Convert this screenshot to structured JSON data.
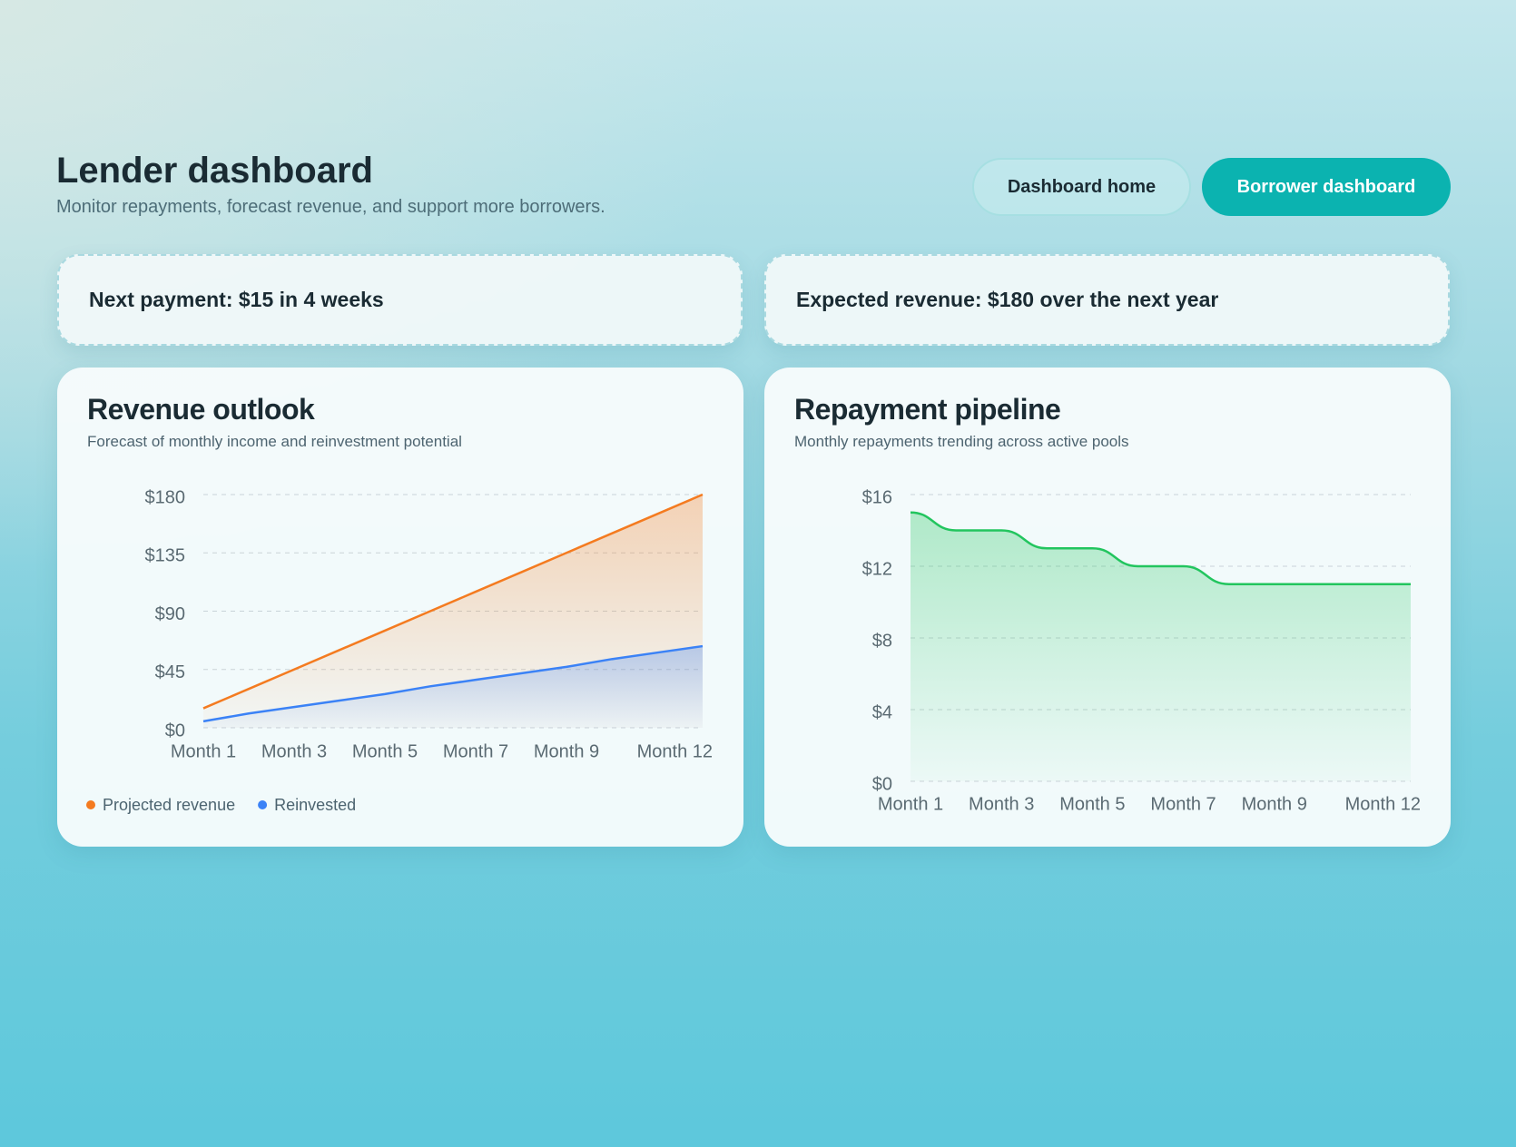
{
  "header": {
    "title": "Lender dashboard",
    "subtitle": "Monitor repayments, forecast revenue, and support more borrowers."
  },
  "nav": {
    "buttons": [
      "Dashboard home",
      "Borrower dashboard"
    ]
  },
  "cards": [
    "Next payment: $15 in 4 weeks",
    "Expected revenue: $180 over the next year"
  ],
  "chart_data": [
    {
      "type": "area",
      "title": "Revenue outlook",
      "subtitle": "Forecast of monthly income and reinvestment potential",
      "categories": [
        "Month 1",
        null,
        "Month 3",
        null,
        "Month 5",
        null,
        "Month 7",
        null,
        "Month 9",
        null,
        null,
        "Month 12"
      ],
      "series": [
        {
          "name": "Projected revenue",
          "color": "#f47b20",
          "values": [
            15,
            30,
            45,
            60,
            75,
            90,
            105,
            120,
            135,
            150,
            165,
            180
          ]
        },
        {
          "name": "Reinvested",
          "color": "#3b82f6",
          "values": [
            5,
            11,
            16,
            21,
            26,
            32,
            37,
            42,
            47,
            53,
            58,
            63
          ]
        }
      ],
      "ylim": [
        0,
        180
      ],
      "yticks": [
        {
          "value": 0,
          "label": "$0"
        },
        {
          "value": 45,
          "label": "$45"
        },
        {
          "value": 90,
          "label": "$90"
        },
        {
          "value": 135,
          "label": "$135"
        },
        {
          "value": 180,
          "label": "$180"
        }
      ],
      "grid": true,
      "legend": "bottom-left"
    },
    {
      "type": "area",
      "smooth": true,
      "title": "Repayment pipeline",
      "subtitle": "Monthly repayments trending across active pools",
      "categories": [
        "Month 1",
        null,
        "Month 3",
        null,
        "Month 5",
        null,
        "Month 7",
        null,
        "Month 9",
        null,
        null,
        "Month 12"
      ],
      "values": [
        15,
        14,
        14,
        13,
        13,
        12,
        12,
        11,
        11,
        11,
        11,
        11
      ],
      "color": "#22c55e",
      "ylim": [
        0,
        16
      ],
      "yticks": [
        {
          "value": 0,
          "label": "$0"
        },
        {
          "value": 4,
          "label": "$4"
        },
        {
          "value": 8,
          "label": "$8"
        },
        {
          "value": 12,
          "label": "$12"
        },
        {
          "value": 16,
          "label": "$16"
        }
      ],
      "grid": true
    }
  ]
}
